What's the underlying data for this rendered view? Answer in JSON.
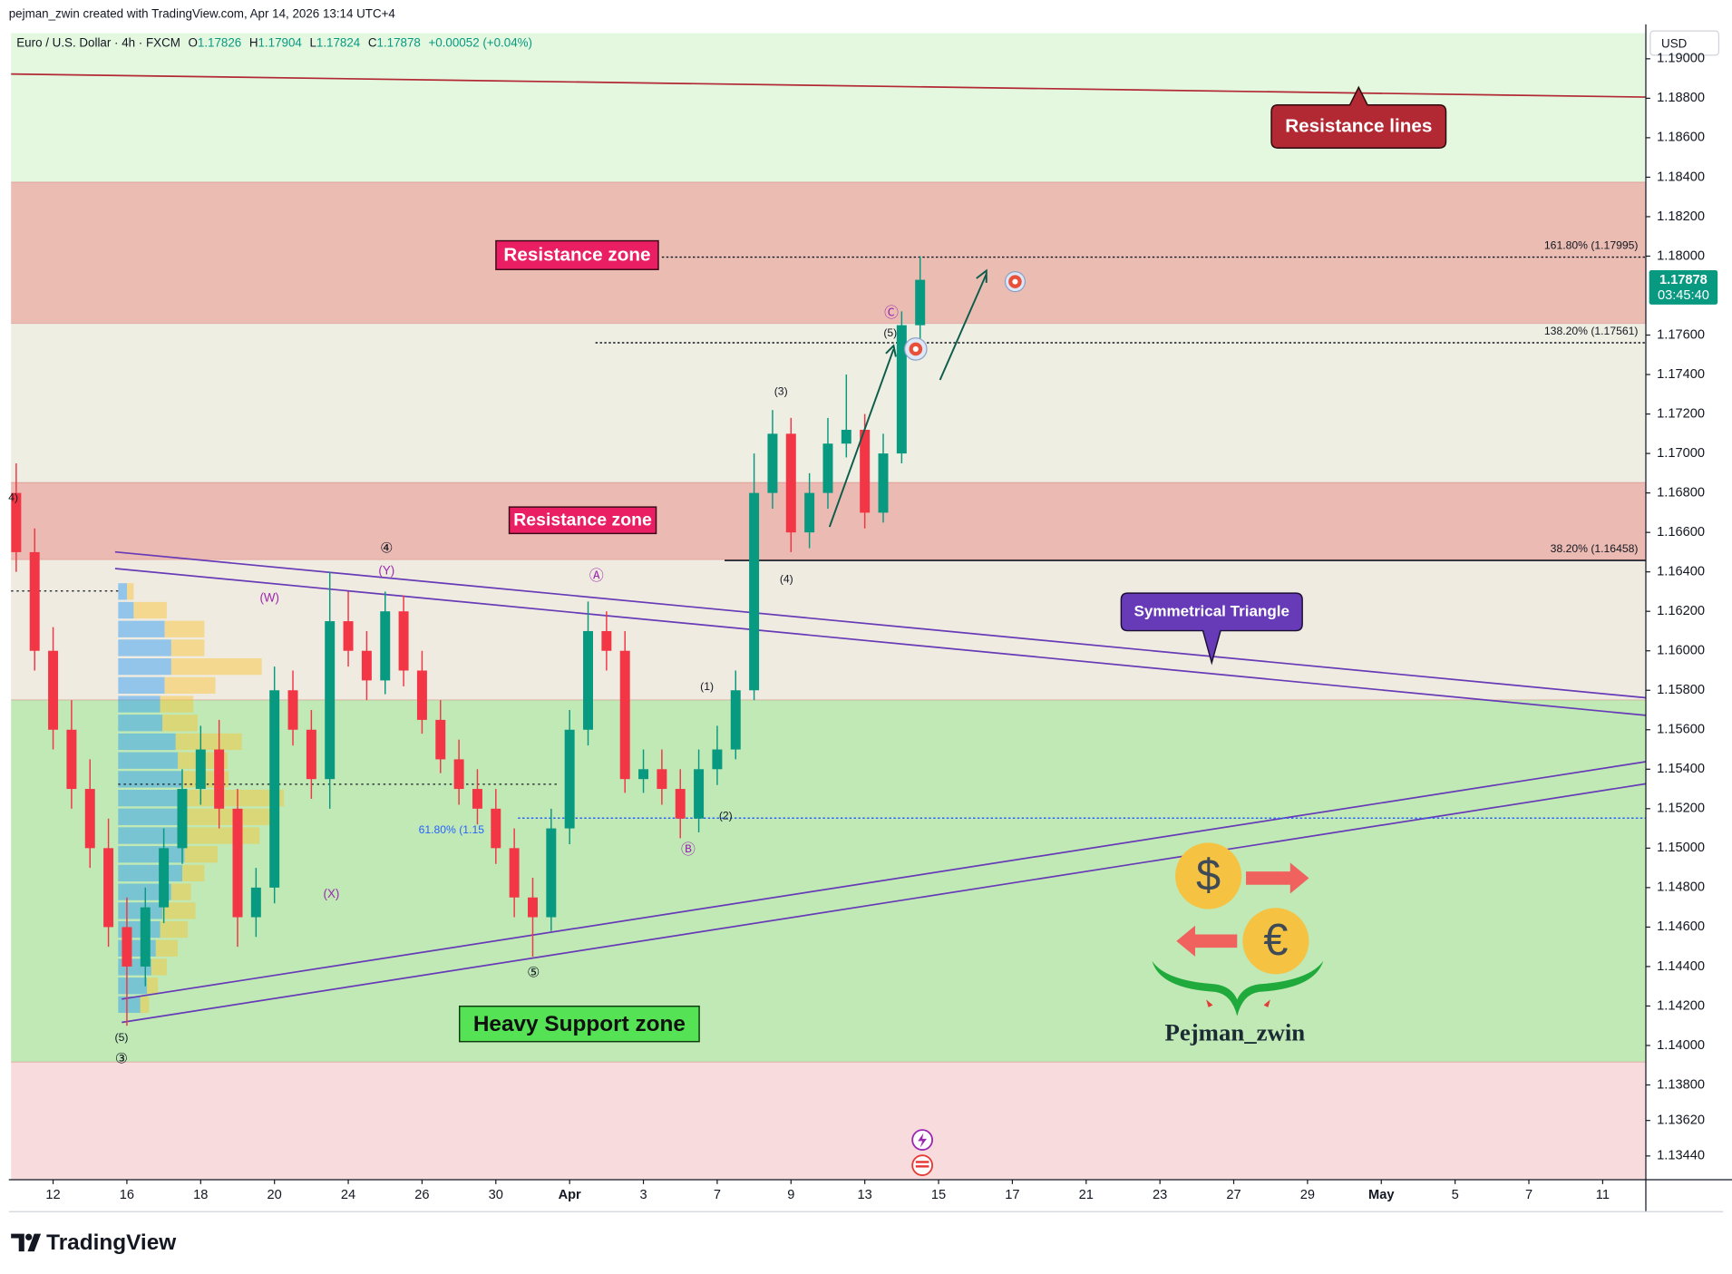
{
  "header": {
    "attribution": "pejman_zwin created with TradingView.com, Apr 14, 2026 13:14 UTC+4"
  },
  "legend": {
    "symbol": "Euro / U.S. Dollar · 4h · FXCM",
    "o": "O",
    "open": 1.17826,
    "h": "H",
    "high": 1.17904,
    "l": "L",
    "low": 1.17824,
    "c": "C",
    "close": 1.17878,
    "change": "+0.00052 (+0.04%)"
  },
  "currency": "USD",
  "price_tag": {
    "price": 1.17878,
    "countdown": "03:45:40",
    "color": "#089981"
  },
  "chart_data": {
    "type": "candlestick",
    "x": [
      -1,
      -0.5,
      0,
      0.5,
      1,
      1.5,
      2,
      2.5,
      3,
      3.5,
      4,
      4.5,
      5,
      5.5,
      6,
      6.5,
      7,
      7.5,
      8,
      8.5,
      9,
      9.5,
      10,
      10.5,
      11,
      11.5,
      12,
      12.5,
      13,
      13.5,
      14,
      14.5,
      15,
      15.5,
      16,
      16.5,
      17,
      17.5,
      18,
      18.5,
      19,
      19.5,
      20,
      20.5,
      21,
      21.5,
      22,
      22.5,
      23,
      23.5
    ],
    "open": [
      1.168,
      1.165,
      1.16,
      1.156,
      1.153,
      1.15,
      1.146,
      1.144,
      1.147,
      1.15,
      1.153,
      1.155,
      1.152,
      1.1465,
      1.148,
      1.158,
      1.156,
      1.1535,
      1.1615,
      1.16,
      1.1585,
      1.162,
      1.159,
      1.1565,
      1.1545,
      1.153,
      1.152,
      1.15,
      1.1475,
      1.1465,
      1.151,
      1.156,
      1.161,
      1.16,
      1.1535,
      1.154,
      1.153,
      1.1515,
      1.154,
      1.155,
      1.158,
      1.168,
      1.171,
      1.166,
      1.168,
      1.1705,
      1.1712,
      1.167,
      1.17,
      1.1765
    ],
    "high": [
      1.1695,
      1.1662,
      1.1612,
      1.1575,
      1.1545,
      1.1515,
      1.1475,
      1.148,
      1.151,
      1.154,
      1.1562,
      1.1565,
      1.153,
      1.149,
      1.1592,
      1.159,
      1.157,
      1.164,
      1.163,
      1.161,
      1.163,
      1.1628,
      1.16,
      1.1575,
      1.1555,
      1.154,
      1.153,
      1.151,
      1.1485,
      1.152,
      1.157,
      1.1625,
      1.162,
      1.161,
      1.155,
      1.155,
      1.154,
      1.155,
      1.1562,
      1.159,
      1.17,
      1.1722,
      1.1718,
      1.169,
      1.1718,
      1.174,
      1.172,
      1.171,
      1.1772,
      1.18
    ],
    "low": [
      1.164,
      1.159,
      1.155,
      1.152,
      1.149,
      1.145,
      1.141,
      1.143,
      1.1462,
      1.1492,
      1.1522,
      1.151,
      1.145,
      1.1455,
      1.1472,
      1.1552,
      1.1525,
      1.152,
      1.1592,
      1.1575,
      1.1578,
      1.1582,
      1.1558,
      1.1538,
      1.1522,
      1.1512,
      1.1492,
      1.1465,
      1.1445,
      1.1458,
      1.1502,
      1.1552,
      1.159,
      1.1528,
      1.1528,
      1.1522,
      1.1505,
      1.1508,
      1.1532,
      1.1545,
      1.1575,
      1.1672,
      1.165,
      1.1652,
      1.1672,
      1.1698,
      1.1662,
      1.1665,
      1.1695,
      1.1758
    ],
    "close": [
      1.165,
      1.16,
      1.156,
      1.153,
      1.15,
      1.146,
      1.144,
      1.147,
      1.15,
      1.153,
      1.155,
      1.152,
      1.1465,
      1.148,
      1.158,
      1.156,
      1.1535,
      1.1615,
      1.16,
      1.1585,
      1.162,
      1.159,
      1.1565,
      1.1545,
      1.153,
      1.152,
      1.15,
      1.1475,
      1.1465,
      1.151,
      1.156,
      1.161,
      1.16,
      1.1535,
      1.154,
      1.153,
      1.1515,
      1.154,
      1.155,
      1.158,
      1.168,
      1.171,
      1.166,
      1.168,
      1.1705,
      1.1712,
      1.167,
      1.17,
      1.1765,
      1.1788
    ],
    "up_color": "#089981",
    "down_color": "#f23645",
    "xlim": [
      -1.14,
      43.17
    ],
    "ylim": [
      1.1332,
      1.1913
    ],
    "xticks": [
      {
        "value": 0,
        "label": "12"
      },
      {
        "value": 2,
        "label": "16"
      },
      {
        "value": 4,
        "label": "18"
      },
      {
        "value": 6,
        "label": "20"
      },
      {
        "value": 8,
        "label": "24"
      },
      {
        "value": 10,
        "label": "26"
      },
      {
        "value": 12,
        "label": "30"
      },
      {
        "value": 14,
        "label": "Apr"
      },
      {
        "value": 16,
        "label": "3"
      },
      {
        "value": 18,
        "label": "7"
      },
      {
        "value": 20,
        "label": "9"
      },
      {
        "value": 22,
        "label": "13"
      },
      {
        "value": 24,
        "label": "15"
      },
      {
        "value": 26,
        "label": "17"
      },
      {
        "value": 28,
        "label": "21"
      },
      {
        "value": 30,
        "label": "23"
      },
      {
        "value": 32,
        "label": "27"
      },
      {
        "value": 34,
        "label": "29"
      },
      {
        "value": 36,
        "label": "May"
      },
      {
        "value": 38,
        "label": "5"
      },
      {
        "value": 40,
        "label": "7"
      },
      {
        "value": 42,
        "label": "11"
      }
    ],
    "yticks": [
      {
        "value": 1.19,
        "label": "1.19000"
      },
      {
        "value": 1.188,
        "label": "1.18800"
      },
      {
        "value": 1.186,
        "label": "1.18600"
      },
      {
        "value": 1.184,
        "label": "1.18400"
      },
      {
        "value": 1.182,
        "label": "1.18200"
      },
      {
        "value": 1.18,
        "label": "1.18000"
      },
      {
        "value": 1.176,
        "label": "1.17600"
      },
      {
        "value": 1.174,
        "label": "1.17400"
      },
      {
        "value": 1.172,
        "label": "1.17200"
      },
      {
        "value": 1.17,
        "label": "1.17000"
      },
      {
        "value": 1.168,
        "label": "1.16800"
      },
      {
        "value": 1.166,
        "label": "1.16600"
      },
      {
        "value": 1.164,
        "label": "1.16400"
      },
      {
        "value": 1.162,
        "label": "1.16200"
      },
      {
        "value": 1.16,
        "label": "1.16000"
      },
      {
        "value": 1.158,
        "label": "1.15800"
      },
      {
        "value": 1.156,
        "label": "1.15600"
      },
      {
        "value": 1.154,
        "label": "1.15400"
      },
      {
        "value": 1.152,
        "label": "1.15200"
      },
      {
        "value": 1.15,
        "label": "1.15000"
      },
      {
        "value": 1.148,
        "label": "1.14800"
      },
      {
        "value": 1.146,
        "label": "1.14600"
      },
      {
        "value": 1.144,
        "label": "1.14400"
      },
      {
        "value": 1.142,
        "label": "1.14200"
      },
      {
        "value": 1.14,
        "label": "1.14000"
      },
      {
        "value": 1.138,
        "label": "1.13800"
      },
      {
        "value": 1.1362,
        "label": "1.13620"
      },
      {
        "value": 1.1344,
        "label": "1.13440"
      }
    ],
    "zones": [
      {
        "from": 1.18375,
        "to": 1.1913,
        "color": "#e4f8e0"
      },
      {
        "from": 1.17659,
        "to": 1.18375,
        "color": "#eabcb2"
      },
      {
        "from": 1.16853,
        "to": 1.17659,
        "color": "#eeeee2"
      },
      {
        "from": 1.16462,
        "to": 1.16853,
        "color": "#ebbab2"
      },
      {
        "from": 1.15751,
        "to": 1.16462,
        "color": "#efebe0"
      },
      {
        "from": 1.13916,
        "to": 1.15751,
        "color": "#c0e9b6"
      },
      {
        "from": 1.1332,
        "to": 1.13916,
        "color": "#f8dcdd"
      }
    ],
    "trendlines": [
      {
        "x": [
          -1.14,
          43.17
        ],
        "y": [
          1.18923,
          1.18806
        ],
        "color": "#b22833"
      },
      {
        "x": [
          1.68,
          43.17
        ],
        "y": [
          1.16501,
          1.15762
        ],
        "color": "#673ab7"
      },
      {
        "x": [
          1.68,
          43.17
        ],
        "y": [
          1.16417,
          1.15673
        ],
        "color": "#673ab7"
      },
      {
        "x": [
          1.86,
          43.17
        ],
        "y": [
          1.14235,
          1.15438
        ],
        "color": "#673ab7"
      },
      {
        "x": [
          1.86,
          43.17
        ],
        "y": [
          1.14117,
          1.15326
        ],
        "color": "#673ab7"
      }
    ],
    "fib_levels": [
      {
        "value": 1.17995,
        "label": "161.80% (1.17995)",
        "start": 16.5,
        "color": "#131722",
        "dash": true
      },
      {
        "value": 1.17561,
        "label": "138.20% (1.17561)",
        "start": 14.7,
        "color": "#131722",
        "dash": true
      },
      {
        "value": 1.16458,
        "label": "38.20% (1.16458)",
        "start": 18.2,
        "color": "#131722",
        "dash": false
      },
      {
        "value": 1.15152,
        "label": "61.80% (1.15",
        "start": 12.6,
        "color": "#2962ff",
        "dash": true
      }
    ],
    "annotations": [
      "Resistance zone",
      "Resistance zone",
      "Resistance lines",
      "Symmetrical Triangle",
      "Heavy Support zone"
    ],
    "wave_labels": [
      "4)",
      "④",
      "(Y)",
      "(W)",
      "Ⓐ",
      "(X)",
      "(2)",
      "Ⓑ",
      "⑤",
      "(1)",
      "(3)",
      "(4)",
      "(5)",
      "Ⓒ",
      "(5)",
      "③"
    ]
  },
  "logo": {
    "dollar": "$",
    "euro": "€",
    "name": "Pejman_zwin"
  },
  "branding": {
    "name": "TradingView"
  }
}
